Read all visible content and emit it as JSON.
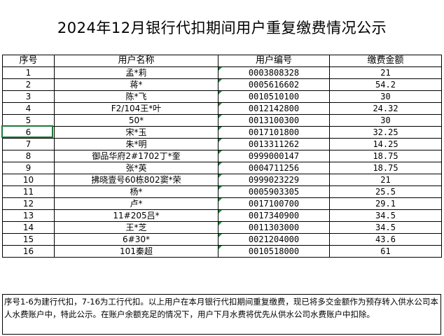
{
  "title": "2024年12月银行代扣期间用户重复缴费情况公示",
  "headers": {
    "seq": "序号",
    "name": "用户名称",
    "account": "用户编号",
    "amount": "缴费金额"
  },
  "rows": [
    {
      "seq": "1",
      "name": "孟*莉",
      "account": "0003808328",
      "amount": "21"
    },
    {
      "seq": "2",
      "name": "蒋*",
      "account": "0005616602",
      "amount": "54.2"
    },
    {
      "seq": "3",
      "name": "陈*飞",
      "account": "0010510100",
      "amount": "30"
    },
    {
      "seq": "4",
      "name": "F2/104王*叶",
      "account": "0012142800",
      "amount": "24.32"
    },
    {
      "seq": "5",
      "name": "50*",
      "account": "0013100300",
      "amount": "30"
    },
    {
      "seq": "6",
      "name": "宋*玉",
      "account": "0017101800",
      "amount": "32.25"
    },
    {
      "seq": "7",
      "name": "朱*明",
      "account": "0013311262",
      "amount": "14.25"
    },
    {
      "seq": "8",
      "name": "御品华府2#1702丁*奎",
      "account": "0999000147",
      "amount": "18.75"
    },
    {
      "seq": "9",
      "name": "张*英",
      "account": "0004711256",
      "amount": "18.75"
    },
    {
      "seq": "10",
      "name": "拂晓壹号60栋802窦*荣",
      "account": "0999023229",
      "amount": "21"
    },
    {
      "seq": "11",
      "name": "杨*",
      "account": "0005903305",
      "amount": "25.5"
    },
    {
      "seq": "12",
      "name": "卢*",
      "account": "0017100700",
      "amount": "29.1"
    },
    {
      "seq": "13",
      "name": "11#205吕*",
      "account": "0017340900",
      "amount": "34.5"
    },
    {
      "seq": "14",
      "name": "王*芝",
      "account": "0011303000",
      "amount": "34.5"
    },
    {
      "seq": "15",
      "name": "6#30*",
      "account": "0021204000",
      "amount": "43.6"
    },
    {
      "seq": "16",
      "name": "101秦超",
      "account": "0010518000",
      "amount": "61"
    }
  ],
  "note": "序号1-6为建行代扣，7-16为工行代扣。以上用户在本月银行代扣期间重复缴费，现已将多交金额作为预存转入供水公司本人水费账户中，特此公示。在账户余额充足的情况下，用户下月水费将优先从供水公司水费账户中扣除。",
  "colors": {
    "grid": "#000000",
    "marker": "#1f8a3a",
    "selection": "#1f7a3a"
  }
}
